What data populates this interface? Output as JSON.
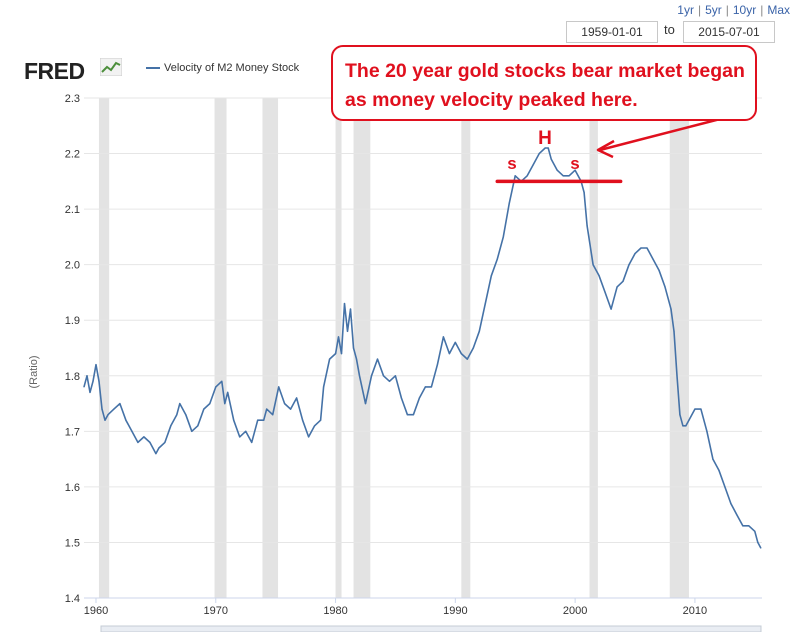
{
  "header": {
    "range_links": [
      "1yr",
      "5yr",
      "10yr",
      "Max"
    ],
    "start_date": "1959-01-01",
    "to_label": "to",
    "end_date": "2015-07-01",
    "logo": "FRED"
  },
  "annotation": {
    "text": "The 20 year gold stocks bear market began as money velocity peaked here.",
    "head_label": "H",
    "shoulder_left": "s",
    "shoulder_right": "s",
    "color": "#e0101e"
  },
  "colors": {
    "series": "#4572a7",
    "recession": "#e3e3e3",
    "accent": "#e0101e"
  },
  "chart_data": {
    "type": "line",
    "title": "",
    "xlabel": "",
    "ylabel": "(Ratio)",
    "xlim": [
      1959,
      2015.6
    ],
    "ylim": [
      1.4,
      2.3
    ],
    "x_ticks": [
      1960,
      1970,
      1980,
      1990,
      2000,
      2010
    ],
    "y_ticks": [
      1.4,
      1.5,
      1.6,
      1.7,
      1.8,
      1.9,
      2.0,
      2.1,
      2.2,
      2.3
    ],
    "y_tick_labels": [
      "1.4",
      "1.5",
      "1.6",
      "1.7",
      "1.8",
      "1.9",
      "2.0",
      "2.1",
      "2.2",
      "2.3"
    ],
    "grid": true,
    "legend": "top-left",
    "recessions": [
      [
        1960.25,
        1961.1
      ],
      [
        1969.9,
        1970.9
      ],
      [
        1973.9,
        1975.2
      ],
      [
        1980.0,
        1980.5
      ],
      [
        1981.5,
        1982.9
      ],
      [
        1990.5,
        1991.25
      ],
      [
        2001.2,
        2001.9
      ],
      [
        2007.9,
        2009.5
      ]
    ],
    "neckline": {
      "x": [
        1993.5,
        2003.8
      ],
      "y": 2.15
    },
    "series": [
      {
        "name": "Velocity of M2 Money Stock",
        "x": [
          1959.0,
          1959.25,
          1959.5,
          1959.75,
          1960.0,
          1960.25,
          1960.5,
          1960.75,
          1961.0,
          1961.5,
          1962.0,
          1962.5,
          1963.0,
          1963.5,
          1964.0,
          1964.5,
          1965.0,
          1965.25,
          1965.75,
          1966.25,
          1966.75,
          1967.0,
          1967.5,
          1968.0,
          1968.5,
          1969.0,
          1969.5,
          1970.0,
          1970.5,
          1970.75,
          1971.0,
          1971.5,
          1972.0,
          1972.5,
          1973.0,
          1973.5,
          1974.0,
          1974.25,
          1974.75,
          1975.25,
          1975.75,
          1976.25,
          1976.75,
          1977.25,
          1977.75,
          1978.25,
          1978.75,
          1979.0,
          1979.5,
          1980.0,
          1980.25,
          1980.5,
          1980.75,
          1981.0,
          1981.25,
          1981.5,
          1981.75,
          1982.0,
          1982.5,
          1983.0,
          1983.5,
          1984.0,
          1984.5,
          1985.0,
          1985.5,
          1986.0,
          1986.5,
          1987.0,
          1987.5,
          1988.0,
          1988.5,
          1989.0,
          1989.5,
          1990.0,
          1990.5,
          1991.0,
          1991.5,
          1992.0,
          1992.5,
          1993.0,
          1993.5,
          1994.0,
          1994.5,
          1995.0,
          1995.5,
          1996.0,
          1996.5,
          1997.0,
          1997.5,
          1997.75,
          1998.0,
          1998.5,
          1999.0,
          1999.5,
          2000.0,
          2000.25,
          2000.5,
          2000.75,
          2001.0,
          2001.5,
          2002.0,
          2002.5,
          2003.0,
          2003.5,
          2004.0,
          2004.5,
          2005.0,
          2005.5,
          2006.0,
          2006.5,
          2007.0,
          2007.5,
          2008.0,
          2008.25,
          2008.5,
          2008.75,
          2009.0,
          2009.25,
          2009.5,
          2010.0,
          2010.5,
          2011.0,
          2011.5,
          2012.0,
          2012.5,
          2013.0,
          2013.5,
          2014.0,
          2014.5,
          2015.0,
          2015.25,
          2015.5
        ],
        "values": [
          1.78,
          1.8,
          1.77,
          1.79,
          1.82,
          1.79,
          1.74,
          1.72,
          1.73,
          1.74,
          1.75,
          1.72,
          1.7,
          1.68,
          1.69,
          1.68,
          1.66,
          1.67,
          1.68,
          1.71,
          1.73,
          1.75,
          1.73,
          1.7,
          1.71,
          1.74,
          1.75,
          1.78,
          1.79,
          1.75,
          1.77,
          1.72,
          1.69,
          1.7,
          1.68,
          1.72,
          1.72,
          1.74,
          1.73,
          1.78,
          1.75,
          1.74,
          1.76,
          1.72,
          1.69,
          1.71,
          1.72,
          1.78,
          1.83,
          1.84,
          1.87,
          1.84,
          1.93,
          1.88,
          1.92,
          1.85,
          1.83,
          1.8,
          1.75,
          1.8,
          1.83,
          1.8,
          1.79,
          1.8,
          1.76,
          1.73,
          1.73,
          1.76,
          1.78,
          1.78,
          1.82,
          1.87,
          1.84,
          1.86,
          1.84,
          1.83,
          1.85,
          1.88,
          1.93,
          1.98,
          2.01,
          2.05,
          2.11,
          2.16,
          2.15,
          2.16,
          2.18,
          2.2,
          2.21,
          2.21,
          2.19,
          2.17,
          2.16,
          2.16,
          2.17,
          2.16,
          2.15,
          2.13,
          2.07,
          2.0,
          1.98,
          1.95,
          1.92,
          1.96,
          1.97,
          2.0,
          2.02,
          2.03,
          2.03,
          2.01,
          1.99,
          1.96,
          1.92,
          1.88,
          1.8,
          1.73,
          1.71,
          1.71,
          1.72,
          1.74,
          1.74,
          1.7,
          1.65,
          1.63,
          1.6,
          1.57,
          1.55,
          1.53,
          1.53,
          1.52,
          1.5,
          1.49
        ]
      }
    ]
  }
}
